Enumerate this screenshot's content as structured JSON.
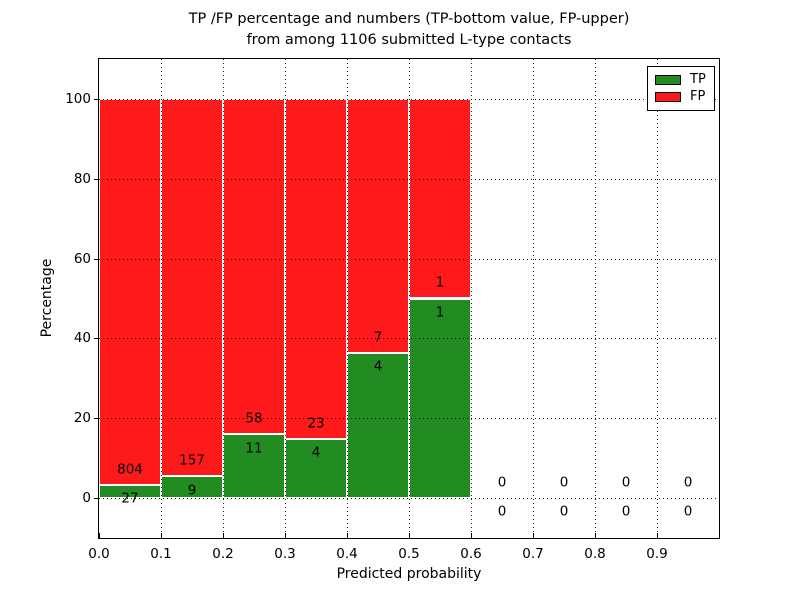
{
  "title": {
    "line1": "TP /FP percentage and numbers (TP-bottom value, FP-upper)",
    "line2": "from among 1106 submitted L-type contacts"
  },
  "axes": {
    "xlabel": "Predicted probability",
    "ylabel": "Percentage"
  },
  "legend": {
    "entries": [
      {
        "label": "TP",
        "color": "#228b22"
      },
      {
        "label": "FP",
        "color": "#fe1a1a"
      }
    ]
  },
  "chart_data": {
    "type": "bar",
    "stacked": true,
    "title": "TP /FP percentage and numbers (TP-bottom value, FP-upper) from among 1106 submitted L-type contacts",
    "xlabel": "Predicted probability",
    "ylabel": "Percentage",
    "total_submitted": 1106,
    "xlim": [
      0.0,
      1.0
    ],
    "ylim": [
      -10,
      110
    ],
    "yticks": [
      0,
      20,
      40,
      60,
      80,
      100
    ],
    "xtick_labels": [
      "0.0",
      "0.1",
      "0.2",
      "0.3",
      "0.4",
      "0.5",
      "0.6",
      "0.7",
      "0.8",
      "0.9"
    ],
    "grid": true,
    "legend_position": "upper right",
    "series_colors": {
      "TP": "#228b22",
      "FP": "#fe1a1a"
    },
    "bar_edge_color": "#ffffff",
    "bins": [
      {
        "x0": 0.0,
        "x1": 0.1,
        "tp": 27,
        "fp": 804,
        "tp_pct": 3.25,
        "fp_pct": 96.75
      },
      {
        "x0": 0.1,
        "x1": 0.2,
        "tp": 9,
        "fp": 157,
        "tp_pct": 5.42,
        "fp_pct": 94.58
      },
      {
        "x0": 0.2,
        "x1": 0.3,
        "tp": 11,
        "fp": 58,
        "tp_pct": 15.94,
        "fp_pct": 84.06
      },
      {
        "x0": 0.3,
        "x1": 0.4,
        "tp": 4,
        "fp": 23,
        "tp_pct": 14.81,
        "fp_pct": 85.19
      },
      {
        "x0": 0.4,
        "x1": 0.5,
        "tp": 4,
        "fp": 7,
        "tp_pct": 36.36,
        "fp_pct": 63.64
      },
      {
        "x0": 0.5,
        "x1": 0.6,
        "tp": 1,
        "fp": 1,
        "tp_pct": 50.0,
        "fp_pct": 50.0
      },
      {
        "x0": 0.6,
        "x1": 0.7,
        "tp": 0,
        "fp": 0,
        "tp_pct": 0,
        "fp_pct": 0
      },
      {
        "x0": 0.7,
        "x1": 0.8,
        "tp": 0,
        "fp": 0,
        "tp_pct": 0,
        "fp_pct": 0
      },
      {
        "x0": 0.8,
        "x1": 0.9,
        "tp": 0,
        "fp": 0,
        "tp_pct": 0,
        "fp_pct": 0
      },
      {
        "x0": 0.9,
        "x1": 1.0,
        "tp": 0,
        "fp": 0,
        "tp_pct": 0,
        "fp_pct": 0
      }
    ]
  }
}
